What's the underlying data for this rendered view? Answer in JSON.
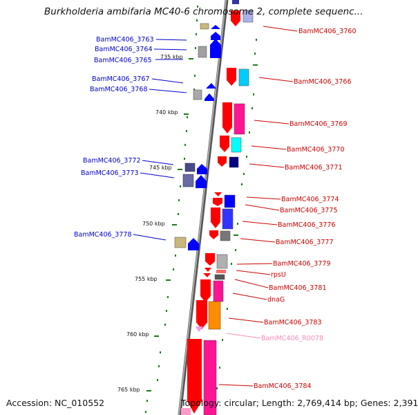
{
  "title": "Burkholderia ambifaria MC40-6 chromosome 2, complete sequenc...",
  "footer": {
    "accession": "Accession: NC_010552",
    "summary": "Topology: circular; Length: 2,769,414 bp; Genes: 2,391"
  },
  "colors": {
    "left_label": "#0000cc",
    "right_label": "#cc0000",
    "rna_label": "#ff88bb",
    "tick": "#1a7a1a",
    "backbone": "#888888"
  },
  "kbp_ticks": [
    {
      "label": "735 kbp"
    },
    {
      "label": "740 kbp"
    },
    {
      "label": "745 kbp"
    },
    {
      "label": "750 kbp"
    },
    {
      "label": "755 kbp"
    },
    {
      "label": "760 kbp"
    },
    {
      "label": "765 kbp"
    }
  ],
  "left_genes": [
    {
      "label": "BamMC406_3763"
    },
    {
      "label": "BamMC406_3764"
    },
    {
      "label": "BamMC406_3765"
    },
    {
      "label": "BamMC406_3767"
    },
    {
      "label": "BamMC406_3768"
    },
    {
      "label": "BamMC406_3772"
    },
    {
      "label": "BamMC406_3773"
    },
    {
      "label": "BamMC406_3778"
    }
  ],
  "right_genes": [
    {
      "label": "BamMC406_3760"
    },
    {
      "label": "BamMC406_3766"
    },
    {
      "label": "BamMC406_3769"
    },
    {
      "label": "BamMC406_3770"
    },
    {
      "label": "BamMC406_3771"
    },
    {
      "label": "BamMC406_3774"
    },
    {
      "label": "BamMC406_3775"
    },
    {
      "label": "BamMC406_3776"
    },
    {
      "label": "BamMC406_3777"
    },
    {
      "label": "BamMC406_3779"
    },
    {
      "label": "rpsU"
    },
    {
      "label": "BamMC406_3781"
    },
    {
      "label": "dnaG"
    },
    {
      "label": "BamMC406_3783"
    },
    {
      "label": "BamMC406_R0078"
    },
    {
      "label": "BamMC406_3784"
    }
  ]
}
